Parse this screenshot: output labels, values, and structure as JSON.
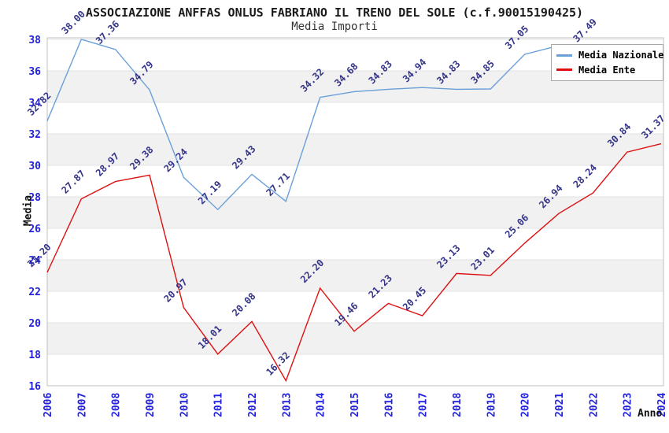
{
  "title": "ASSOCIAZIONE ANFFAS ONLUS FABRIANO IL TRENO DEL SOLE (c.f.90015190425)",
  "subtitle": "Media Importi",
  "chart_data": {
    "type": "line",
    "title": "ASSOCIAZIONE ANFFAS ONLUS FABRIANO IL TRENO DEL SOLE (c.f.90015190425)",
    "subtitle": "Media Importi",
    "xlabel": "Anno",
    "ylabel": "Media",
    "x": [
      2006,
      2007,
      2008,
      2009,
      2010,
      2011,
      2012,
      2013,
      2014,
      2015,
      2016,
      2017,
      2018,
      2019,
      2020,
      2021,
      2022,
      2023,
      2024
    ],
    "ylim": [
      16,
      38
    ],
    "ytick_step": 2,
    "grid": "alternating-horizontal-bands",
    "legend_position": "top-right",
    "colors": {
      "axis_ticks": "#2222dd",
      "point_labels": "#333388",
      "band_gray": "#f1f1f1",
      "plot_border": "#c0c0c0",
      "gridline": "#e2e2e2"
    },
    "series": [
      {
        "name": "Media Nazionale",
        "color": "#6a9fd8",
        "values": [
          32.82,
          38.0,
          37.36,
          34.79,
          29.24,
          27.19,
          29.43,
          27.71,
          34.32,
          34.68,
          34.83,
          34.94,
          34.83,
          34.85,
          37.05,
          37.6,
          37.49,
          null,
          null
        ],
        "point_labels": [
          "32.82",
          "38.00",
          "37.36",
          "34.79",
          "29.24",
          "27.19",
          "29.43",
          "27.71",
          "34.32",
          "34.68",
          "34.83",
          "34.94",
          "34.83",
          "34.85",
          "37.05",
          "",
          "37.49",
          "",
          ""
        ]
      },
      {
        "name": "Media Ente",
        "color": "#dd1111",
        "values": [
          23.2,
          27.87,
          28.97,
          29.38,
          20.97,
          18.01,
          20.08,
          16.32,
          22.2,
          19.46,
          21.23,
          20.45,
          23.13,
          23.01,
          25.06,
          26.94,
          28.24,
          30.84,
          31.37
        ],
        "point_labels": [
          "23.20",
          "27.87",
          "28.97",
          "29.38",
          "20.97",
          "18.01",
          "20.08",
          "16.32",
          "22.20",
          "19.46",
          "21.23",
          "20.45",
          "23.13",
          "23.01",
          "25.06",
          "26.94",
          "28.24",
          "30.84",
          "31.37"
        ]
      }
    ]
  }
}
